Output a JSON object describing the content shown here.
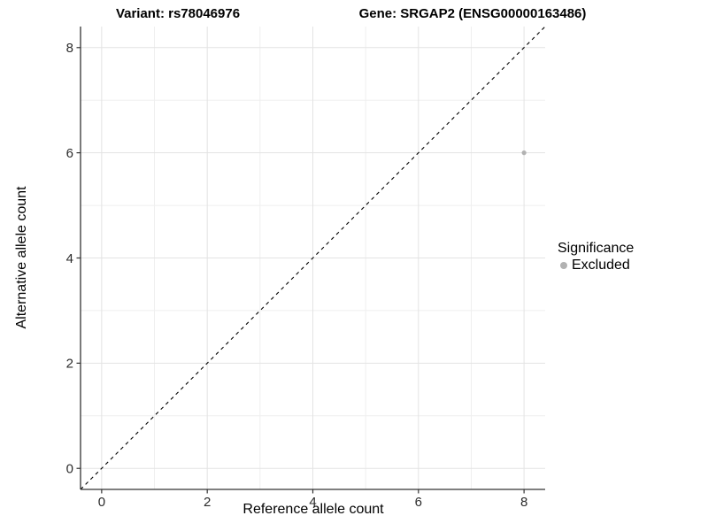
{
  "chart_data": {
    "type": "scatter",
    "title_left": "Variant: rs78046976",
    "title_right": "Gene: SRGAP2 (ENSG00000163486)",
    "xlabel": "Reference allele count",
    "ylabel": "Alternative allele count",
    "xlim": [
      -0.4,
      8.4
    ],
    "ylim": [
      -0.4,
      8.4
    ],
    "x_ticks": [
      0,
      2,
      4,
      6,
      8
    ],
    "y_ticks": [
      0,
      2,
      4,
      6,
      8
    ],
    "x_minor_ticks": [
      1,
      3,
      5,
      7
    ],
    "y_minor_ticks": [
      1,
      3,
      5,
      7
    ],
    "grid": "major and minor gridlines, light gray on white panel",
    "legend_position": "right",
    "points": [
      {
        "x": 8,
        "y": 6,
        "series": "Excluded"
      }
    ],
    "reference_line": {
      "type": "identity y=x",
      "style": "dashed",
      "from": [
        -0.4,
        -0.4
      ],
      "to": [
        8.4,
        8.4
      ]
    },
    "legend": {
      "title": "Significance",
      "items": [
        {
          "label": "Excluded",
          "color": "#b2b2b2"
        }
      ]
    }
  },
  "colors": {
    "background": "#ffffff",
    "point": "#b2b2b2",
    "grid_major": "#e3e3e3",
    "grid_minor": "#efefef",
    "axis_line": "#333333",
    "tick_text": "#2b2b2b",
    "reference_line": "#000000",
    "title_text": "#000000"
  }
}
